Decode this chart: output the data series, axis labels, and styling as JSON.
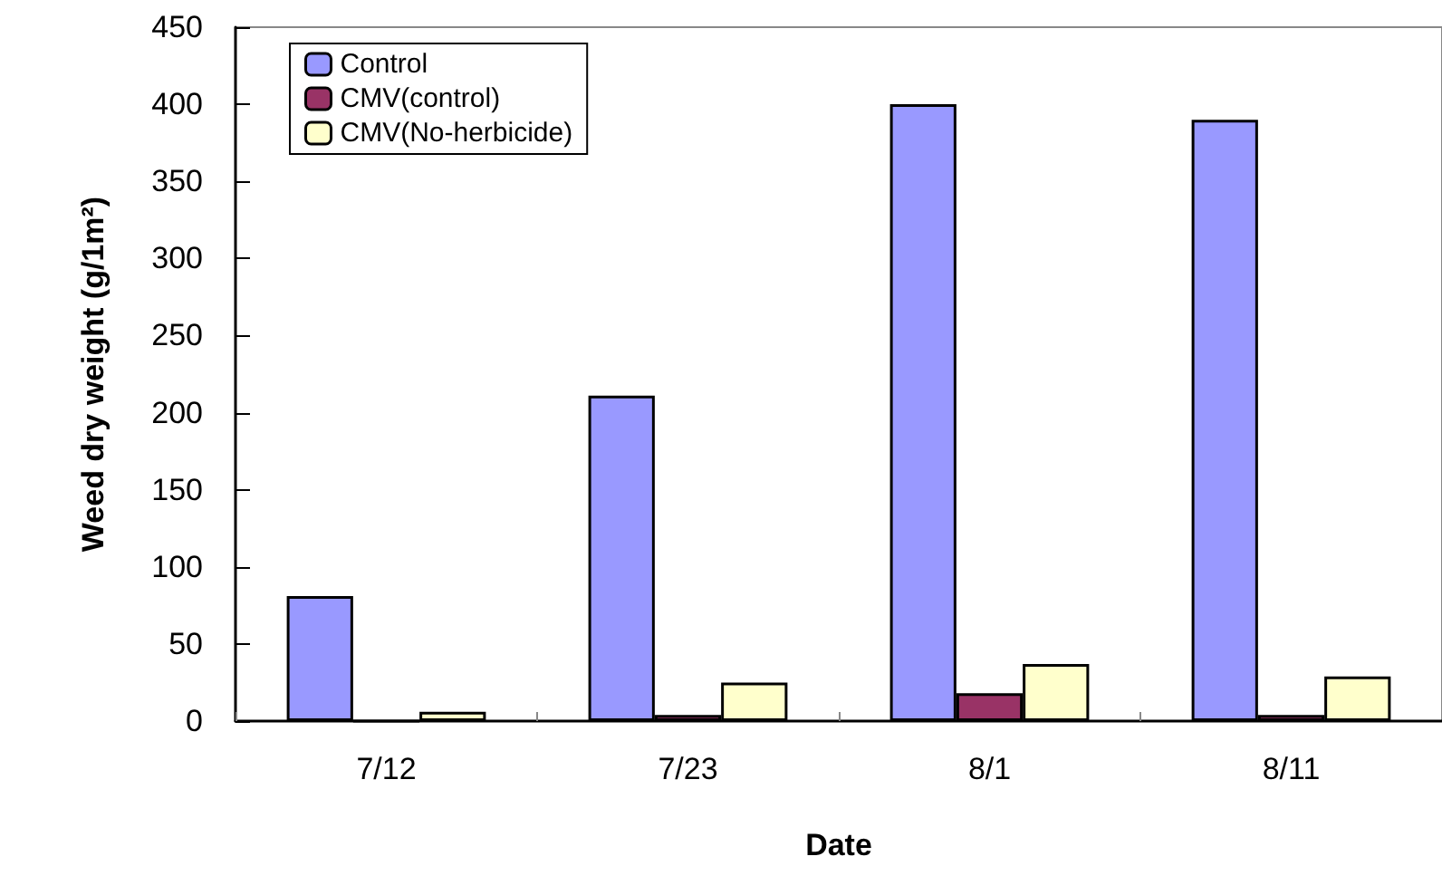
{
  "chart_data": {
    "type": "bar",
    "xlabel": "Date",
    "ylabel": "Weed dry weight (g/1m²)",
    "categories": [
      "7/12",
      "7/23",
      "8/1",
      "8/11"
    ],
    "series": [
      {
        "name": "Control",
        "color": "#9999ff",
        "values": [
          81,
          211,
          400,
          390
        ]
      },
      {
        "name": "CMV(control)",
        "color": "#993366",
        "values": [
          0,
          4,
          18,
          4
        ]
      },
      {
        "name": "CMV(No-herbicide)",
        "color": "#ffffcc",
        "values": [
          6,
          25,
          37,
          29
        ]
      }
    ],
    "ylim": [
      0,
      450
    ],
    "yticks": [
      0,
      50,
      100,
      150,
      200,
      250,
      300,
      350,
      400,
      450
    ],
    "grid": false,
    "legend": "top left"
  }
}
